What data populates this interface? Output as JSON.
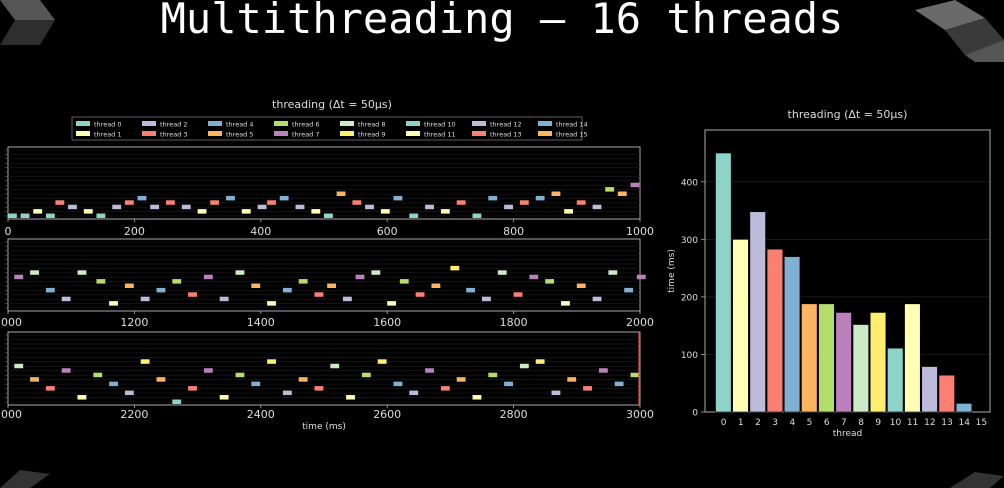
{
  "slide": {
    "title": "Multithreading – 16 threads"
  },
  "chart_data": [
    {
      "type": "timeline",
      "title": "threading (Δt = 50μs)",
      "xlabel": "time (ms)",
      "legend": [
        "thread 0",
        "thread 1",
        "thread 2",
        "thread 3",
        "thread 4",
        "thread 5",
        "thread 6",
        "thread 7",
        "thread 8",
        "thread 9",
        "thread 10",
        "thread 11",
        "thread 12",
        "thread 13",
        "thread 14",
        "thread 15"
      ],
      "panels": [
        {
          "xlim": [
            0,
            1000
          ],
          "xticks": [
            0,
            200,
            400,
            600,
            800,
            1000
          ],
          "segments": [
            [
              0,
              0
            ],
            [
              20,
              0
            ],
            [
              40,
              1
            ],
            [
              60,
              0
            ],
            [
              75,
              3
            ],
            [
              95,
              2
            ],
            [
              120,
              1
            ],
            [
              140,
              0
            ],
            [
              165,
              2
            ],
            [
              185,
              3
            ],
            [
              205,
              4
            ],
            [
              225,
              2
            ],
            [
              250,
              3
            ],
            [
              275,
              2
            ],
            [
              300,
              1
            ],
            [
              320,
              3
            ],
            [
              345,
              4
            ],
            [
              370,
              1
            ],
            [
              395,
              2
            ],
            [
              410,
              3
            ],
            [
              430,
              4
            ],
            [
              455,
              2
            ],
            [
              480,
              1
            ],
            [
              500,
              0
            ],
            [
              520,
              5
            ],
            [
              545,
              3
            ],
            [
              565,
              2
            ],
            [
              590,
              1
            ],
            [
              610,
              4
            ],
            [
              635,
              0
            ],
            [
              660,
              2
            ],
            [
              685,
              1
            ],
            [
              710,
              3
            ],
            [
              735,
              0
            ],
            [
              760,
              4
            ],
            [
              785,
              2
            ],
            [
              810,
              3
            ],
            [
              835,
              4
            ],
            [
              860,
              5
            ],
            [
              880,
              1
            ],
            [
              900,
              3
            ],
            [
              925,
              2
            ],
            [
              945,
              6
            ],
            [
              965,
              5
            ],
            [
              985,
              7
            ]
          ]
        },
        {
          "xlim": [
            1000,
            2000
          ],
          "xticks": [
            1000,
            1200,
            1400,
            1600,
            1800,
            2000
          ],
          "segments": [
            [
              1010,
              7
            ],
            [
              1035,
              8
            ],
            [
              1060,
              4
            ],
            [
              1085,
              2
            ],
            [
              1110,
              8
            ],
            [
              1140,
              6
            ],
            [
              1160,
              1
            ],
            [
              1185,
              5
            ],
            [
              1210,
              2
            ],
            [
              1235,
              4
            ],
            [
              1260,
              6
            ],
            [
              1285,
              3
            ],
            [
              1310,
              7
            ],
            [
              1335,
              2
            ],
            [
              1360,
              8
            ],
            [
              1385,
              5
            ],
            [
              1410,
              1
            ],
            [
              1435,
              4
            ],
            [
              1460,
              6
            ],
            [
              1485,
              3
            ],
            [
              1505,
              5
            ],
            [
              1530,
              2
            ],
            [
              1550,
              7
            ],
            [
              1575,
              8
            ],
            [
              1600,
              1
            ],
            [
              1620,
              6
            ],
            [
              1645,
              3
            ],
            [
              1670,
              5
            ],
            [
              1700,
              9
            ],
            [
              1725,
              4
            ],
            [
              1750,
              2
            ],
            [
              1775,
              8
            ],
            [
              1800,
              3
            ],
            [
              1825,
              7
            ],
            [
              1850,
              6
            ],
            [
              1875,
              1
            ],
            [
              1900,
              5
            ],
            [
              1925,
              2
            ],
            [
              1950,
              8
            ],
            [
              1975,
              4
            ],
            [
              1995,
              7
            ]
          ]
        },
        {
          "xlim": [
            2000,
            3000
          ],
          "xticks": [
            2000,
            2200,
            2400,
            2600,
            2800,
            3000
          ],
          "segments": [
            [
              2010,
              8
            ],
            [
              2035,
              5
            ],
            [
              2060,
              3
            ],
            [
              2085,
              7
            ],
            [
              2110,
              1
            ],
            [
              2135,
              6
            ],
            [
              2160,
              4
            ],
            [
              2185,
              2
            ],
            [
              2210,
              9
            ],
            [
              2235,
              5
            ],
            [
              2260,
              0
            ],
            [
              2285,
              3
            ],
            [
              2310,
              7
            ],
            [
              2335,
              1
            ],
            [
              2360,
              6
            ],
            [
              2385,
              4
            ],
            [
              2410,
              9
            ],
            [
              2435,
              2
            ],
            [
              2460,
              5
            ],
            [
              2485,
              3
            ],
            [
              2510,
              8
            ],
            [
              2535,
              1
            ],
            [
              2560,
              6
            ],
            [
              2585,
              9
            ],
            [
              2610,
              4
            ],
            [
              2635,
              2
            ],
            [
              2660,
              7
            ],
            [
              2685,
              3
            ],
            [
              2710,
              5
            ],
            [
              2735,
              1
            ],
            [
              2760,
              6
            ],
            [
              2785,
              4
            ],
            [
              2810,
              8
            ],
            [
              2835,
              9
            ],
            [
              2860,
              2
            ],
            [
              2885,
              5
            ],
            [
              2910,
              3
            ],
            [
              2935,
              7
            ],
            [
              2960,
              4
            ],
            [
              2985,
              6
            ]
          ]
        }
      ]
    },
    {
      "type": "bar",
      "title": "threading (Δt = 50μs)",
      "xlabel": "thread",
      "ylabel": "time (ms)",
      "categories": [
        "0",
        "1",
        "2",
        "3",
        "4",
        "5",
        "6",
        "7",
        "8",
        "9",
        "10",
        "11",
        "12",
        "13",
        "14",
        "15"
      ],
      "values": [
        450,
        300,
        348,
        283,
        270,
        188,
        188,
        173,
        152,
        173,
        111,
        188,
        79,
        64,
        15,
        0
      ],
      "ylim": [
        0,
        490
      ],
      "yticks": [
        0,
        100,
        200,
        300,
        400
      ]
    }
  ],
  "colors": [
    "#8dd3c7",
    "#ffffb3",
    "#bebada",
    "#fb8072",
    "#80b1d3",
    "#fdb462",
    "#b3de69",
    "#bc80bd",
    "#ccebc5",
    "#ffed6f",
    "#8dd3c7",
    "#ffffb3",
    "#bebada",
    "#fb8072",
    "#80b1d3",
    "#fdb462"
  ]
}
